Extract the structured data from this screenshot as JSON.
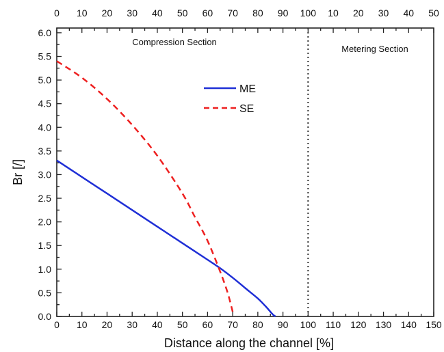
{
  "chart_data": {
    "type": "line",
    "xlabel": "Distance along the channel [%]",
    "ylabel": "Br [/]",
    "xlim": [
      0,
      150
    ],
    "ylim": [
      0,
      6.1
    ],
    "x_ticks": [
      0,
      10,
      20,
      30,
      40,
      50,
      60,
      70,
      80,
      90,
      100,
      110,
      120,
      130,
      140,
      150
    ],
    "y_ticks": [
      0.0,
      0.5,
      1.0,
      1.5,
      2.0,
      2.5,
      3.0,
      3.5,
      4.0,
      4.5,
      5.0,
      5.5,
      6.0
    ],
    "y_tick_labels": [
      "0.0",
      "0.5",
      "1.0",
      "1.5",
      "2.0",
      "2.5",
      "3.0",
      "3.5",
      "4.0",
      "4.5",
      "5.0",
      "5.5",
      "6.0"
    ],
    "top_tick_labels": [
      "0",
      "10",
      "20",
      "30",
      "40",
      "50",
      "60",
      "70",
      "80",
      "90",
      "100",
      "10",
      "20",
      "30",
      "40",
      "50"
    ],
    "section_divider_x": 100,
    "annotations": [
      "Compression Section",
      "Metering Section"
    ],
    "legend": {
      "placement": "top-center"
    },
    "series": [
      {
        "name": "ME",
        "color": "#1f2fd6",
        "style": "solid",
        "x": [
          0,
          10,
          20,
          30,
          40,
          50,
          60,
          65,
          70,
          75,
          80,
          83,
          85,
          86,
          87
        ],
        "y": [
          3.3,
          2.95,
          2.6,
          2.25,
          1.9,
          1.55,
          1.2,
          1.02,
          0.82,
          0.6,
          0.38,
          0.22,
          0.1,
          0.04,
          0.0
        ]
      },
      {
        "name": "SE",
        "color": "#ee2020",
        "style": "dashed",
        "x": [
          0,
          10,
          20,
          30,
          40,
          50,
          55,
          60,
          65,
          68,
          70
        ],
        "y": [
          5.4,
          5.05,
          4.6,
          4.05,
          3.4,
          2.6,
          2.1,
          1.6,
          0.95,
          0.5,
          0.1
        ]
      }
    ]
  }
}
